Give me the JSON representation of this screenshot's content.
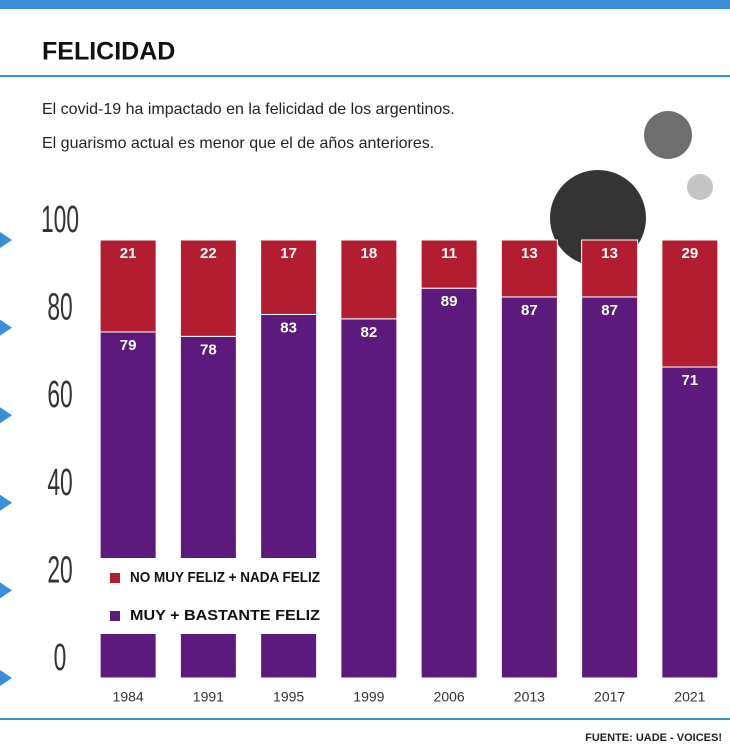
{
  "chart_data": {
    "type": "stacked_bar",
    "title": "FELICIDAD",
    "subtitle": [
      "El covid-19 ha impactado en la felicidad de los argentinos.",
      "El guarismo actual es menor que el de años anteriores."
    ],
    "categories": [
      "1984",
      "1991",
      "1995",
      "1999",
      "2006",
      "2013",
      "2017",
      "2021"
    ],
    "series": [
      {
        "name": "MUY + BASTANTE FELIZ",
        "color": "#5c1b7c",
        "values": [
          79,
          78,
          83,
          82,
          89,
          87,
          87,
          71
        ]
      },
      {
        "name": "NO MUY FELIZ + NADA FELIZ",
        "color": "#b21d30",
        "values": [
          21,
          22,
          17,
          18,
          11,
          13,
          13,
          29
        ]
      }
    ],
    "ylim": [
      0,
      100
    ],
    "yticks": [
      0,
      20,
      40,
      60,
      80,
      100
    ],
    "source": "FUENTE: UADE - VOICES!"
  }
}
